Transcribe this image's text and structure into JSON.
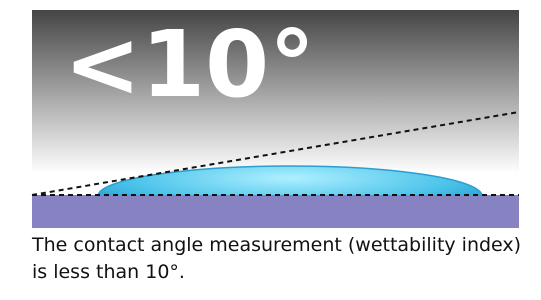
{
  "figure": {
    "label": "<10°"
  },
  "caption": "The contact angle measurement (wettability index) is less than 10°."
}
